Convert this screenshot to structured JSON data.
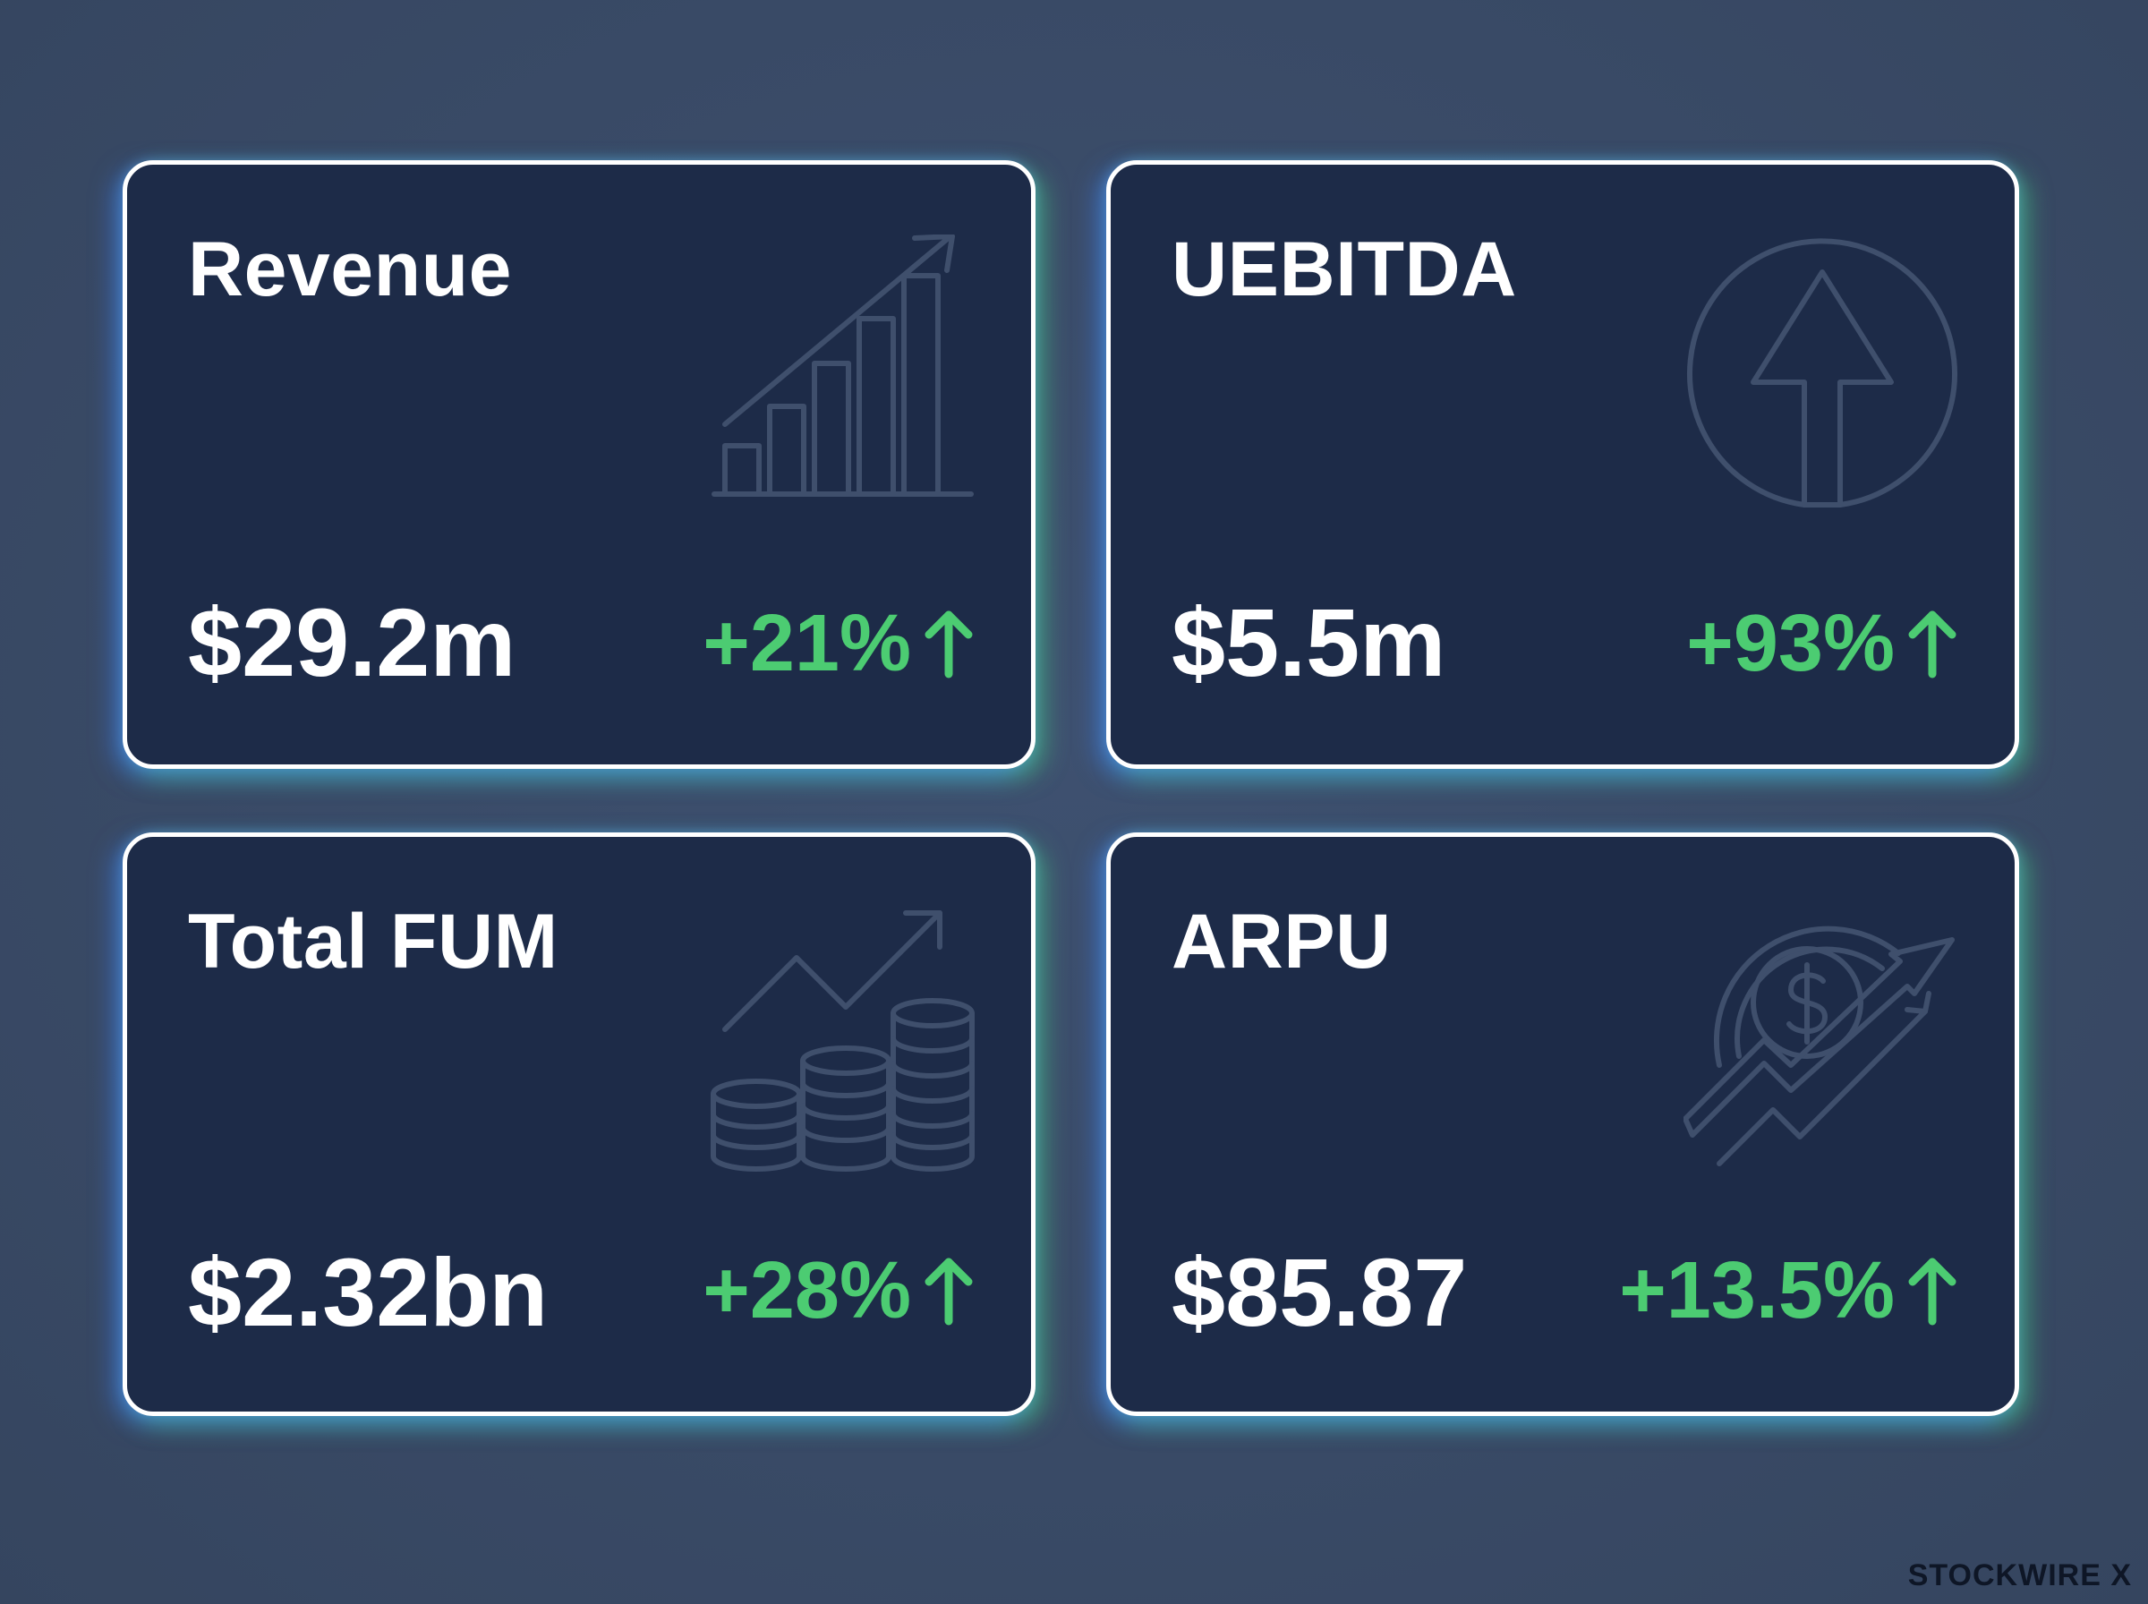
{
  "metrics": [
    {
      "title": "Revenue",
      "value": "$29.2m",
      "change": "+21%",
      "icon": "bar-chart-growth-icon"
    },
    {
      "title": "UEBITDA",
      "value": "$5.5m",
      "change": "+93%",
      "icon": "circle-arrow-up-icon"
    },
    {
      "title": "Total FUM",
      "value": "$2.32bn",
      "change": "+28%",
      "icon": "coin-stacks-growth-icon"
    },
    {
      "title": "ARPU",
      "value": "$85.87",
      "change": "+13.5%",
      "icon": "dollar-coin-trend-icon"
    }
  ],
  "brand": "STOCKWIRE X",
  "colors": {
    "background": "#3a4c68",
    "card": "#1d2b48",
    "card_border": "#ffffff",
    "positive": "#4ccc72",
    "icon_stroke": "#3f4f6c"
  }
}
